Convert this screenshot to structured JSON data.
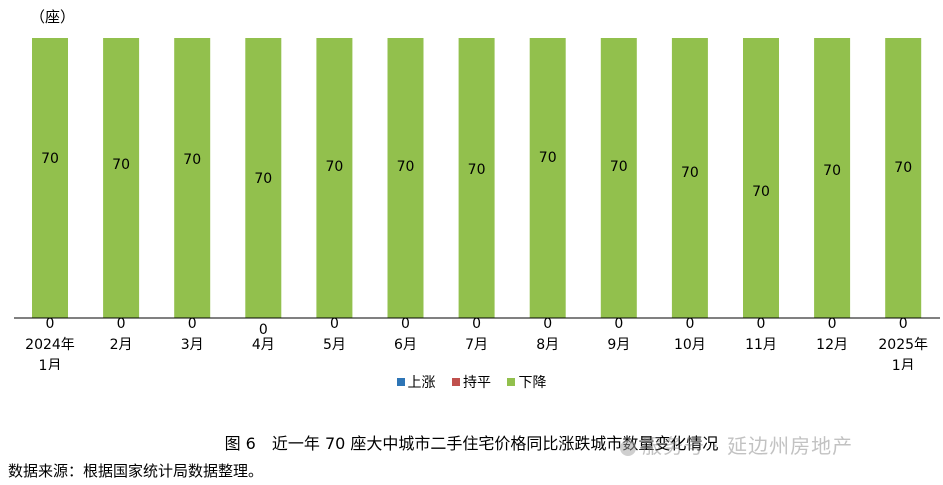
{
  "chart_data": {
    "type": "bar",
    "stacked": true,
    "unit_label": "（座）",
    "categories": [
      [
        "2024年",
        "1月"
      ],
      [
        "2月"
      ],
      [
        "3月"
      ],
      [
        "4月"
      ],
      [
        "5月"
      ],
      [
        "6月"
      ],
      [
        "7月"
      ],
      [
        "8月"
      ],
      [
        "9月"
      ],
      [
        "10月"
      ],
      [
        "11月"
      ],
      [
        "12月"
      ],
      [
        "2025年",
        "1月"
      ]
    ],
    "series": [
      {
        "name": "上涨",
        "color": "#2E75B6",
        "values": [
          0,
          0,
          0,
          0,
          0,
          0,
          0,
          0,
          0,
          0,
          0,
          0,
          0
        ]
      },
      {
        "name": "持平",
        "color": "#C0504D",
        "values": [
          0,
          0,
          0,
          0,
          0,
          0,
          0,
          0,
          0,
          0,
          0,
          0,
          0
        ]
      },
      {
        "name": "下降",
        "color": "#92C04D",
        "values": [
          70,
          70,
          70,
          70,
          70,
          70,
          70,
          70,
          70,
          70,
          70,
          70,
          70
        ]
      }
    ],
    "ylim": [
      0,
      70
    ],
    "legend_position": "bottom"
  },
  "caption": "图 6　近一年 70 座大中城市二手住宅价格同比涨跌城市数量变化情况",
  "source": "数据来源：根据国家统计局数据整理。",
  "watermark": "服务号 · 延边州房地产"
}
